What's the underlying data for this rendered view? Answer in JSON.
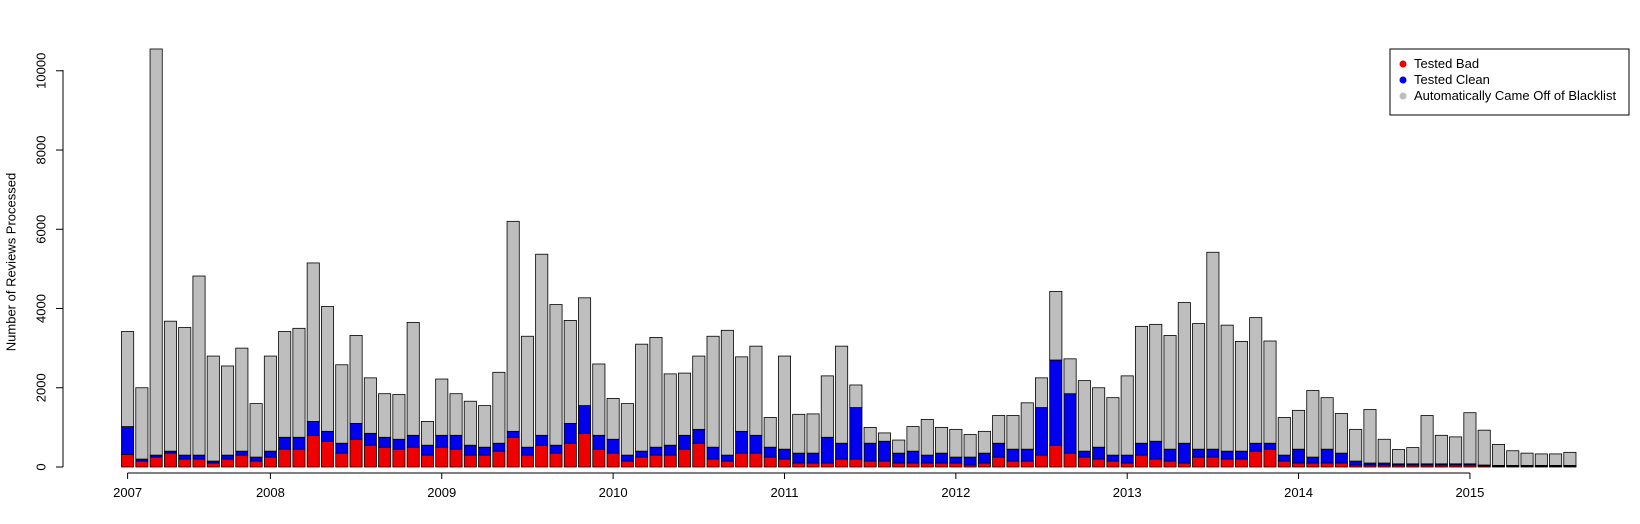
{
  "chart_data": {
    "type": "bar",
    "stacked": true,
    "title": "",
    "xlabel": "",
    "ylabel": "Number of Reviews Processed",
    "ylim": [
      0,
      10600
    ],
    "yticks": [
      0,
      2000,
      4000,
      6000,
      8000,
      10000
    ],
    "grid": false,
    "legend_position": "top-right",
    "x_tick_labels": [
      "2007",
      "2008",
      "2009",
      "2010",
      "2011",
      "2012",
      "2013",
      "2014",
      "2015"
    ],
    "x_tick_bar_index": [
      0,
      10,
      22,
      34,
      46,
      58,
      70,
      82,
      94
    ],
    "series": [
      {
        "name": "Tested Bad",
        "color": "#ee0000",
        "values": [
          320,
          150,
          250,
          350,
          200,
          200,
          100,
          200,
          300,
          150,
          250,
          450,
          450,
          800,
          650,
          350,
          700,
          550,
          500,
          450,
          500,
          300,
          500,
          450,
          300,
          300,
          400,
          750,
          300,
          550,
          350,
          600,
          850,
          450,
          350,
          150,
          250,
          300,
          300,
          450,
          600,
          200,
          150,
          350,
          350,
          250,
          200,
          100,
          100,
          100,
          200,
          200,
          150,
          150,
          100,
          100,
          100,
          100,
          100,
          50,
          100,
          250,
          150,
          150,
          300,
          550,
          350,
          250,
          200,
          150,
          100,
          300,
          200,
          150,
          100,
          250,
          250,
          200,
          200,
          400,
          450,
          150,
          100,
          100,
          100,
          100,
          50,
          50,
          50,
          50,
          50,
          50,
          50,
          50,
          50,
          30,
          20,
          20,
          20,
          20,
          20,
          20
        ]
      },
      {
        "name": "Tested Clean",
        "color": "#0000ee",
        "values": [
          700,
          50,
          50,
          50,
          100,
          100,
          50,
          100,
          100,
          100,
          150,
          300,
          300,
          350,
          250,
          250,
          400,
          300,
          250,
          250,
          300,
          250,
          300,
          350,
          250,
          200,
          200,
          150,
          200,
          250,
          200,
          500,
          700,
          350,
          350,
          150,
          150,
          200,
          250,
          350,
          350,
          300,
          150,
          550,
          450,
          250,
          250,
          250,
          250,
          650,
          400,
          1300,
          450,
          500,
          250,
          300,
          200,
          250,
          150,
          200,
          250,
          350,
          300,
          300,
          1200,
          2150,
          1500,
          150,
          300,
          150,
          200,
          300,
          450,
          300,
          500,
          200,
          200,
          200,
          200,
          200,
          150,
          150,
          350,
          150,
          350,
          250,
          100,
          50,
          50,
          30,
          30,
          30,
          30,
          30,
          30,
          20,
          20,
          20,
          20,
          20,
          20,
          20
        ]
      },
      {
        "name": "Automatically Came Off of Blacklist",
        "color": "#bebebe",
        "values": [
          2400,
          1800,
          10250,
          3280,
          3220,
          4520,
          2650,
          2250,
          2600,
          1350,
          2400,
          2670,
          2750,
          4000,
          3150,
          1980,
          2220,
          1400,
          1100,
          1130,
          2850,
          600,
          1420,
          1050,
          1110,
          1050,
          1790,
          5300,
          2800,
          4570,
          3550,
          2600,
          2720,
          1800,
          1030,
          1300,
          2700,
          2770,
          1800,
          1570,
          1850,
          2800,
          3150,
          1880,
          2250,
          750,
          2350,
          980,
          990,
          1550,
          2450,
          570,
          400,
          210,
          330,
          620,
          900,
          650,
          700,
          570,
          550,
          700,
          850,
          1170,
          750,
          1730,
          880,
          1780,
          1500,
          1450,
          2000,
          2950,
          2950,
          2870,
          3550,
          3170,
          4970,
          3180,
          2770,
          3170,
          2580,
          950,
          980,
          1680,
          1300,
          1000,
          800,
          1350,
          600,
          360,
          410,
          1220,
          720,
          680,
          1290,
          880,
          530,
          370,
          310,
          290,
          290,
          330
        ]
      }
    ]
  },
  "axes": {
    "y_ticks": [
      "0",
      "2000",
      "4000",
      "6000",
      "8000",
      "10000"
    ],
    "y_title": "Number of Reviews Processed"
  },
  "legend": {
    "items": [
      {
        "label": "Tested Bad",
        "color": "#ee0000"
      },
      {
        "label": "Tested Clean",
        "color": "#0000ee"
      },
      {
        "label": "Automatically Came Off of Blacklist",
        "color": "#bebebe"
      }
    ]
  }
}
